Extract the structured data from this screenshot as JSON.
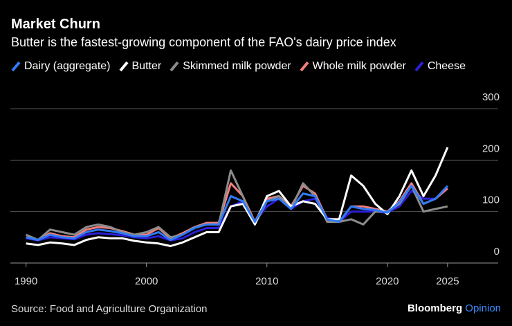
{
  "chart_data": {
    "type": "line",
    "title": "Market Churn",
    "subtitle": "Butter is the fastest-growing component of the FAO's dairy price index",
    "source": "Source: Food and Agriculture Organization",
    "logo": {
      "name": "Bloomberg",
      "tag": "Opinion"
    },
    "x": [
      1990,
      1991,
      1992,
      1993,
      1994,
      1995,
      1996,
      1997,
      1998,
      1999,
      2000,
      2001,
      2002,
      2003,
      2004,
      2005,
      2006,
      2007,
      2008,
      2009,
      2010,
      2011,
      2012,
      2013,
      2014,
      2015,
      2016,
      2017,
      2018,
      2019,
      2020,
      2021,
      2022,
      2023,
      2024,
      2025
    ],
    "xlim": [
      1988.7,
      2029.2
    ],
    "xticks": [
      1990,
      2000,
      2010,
      2020,
      2025
    ],
    "ylim": [
      0,
      300
    ],
    "yticks": [
      0,
      100,
      200,
      300
    ],
    "grid": true,
    "series": [
      {
        "name": "Dairy (aggregate)",
        "color": "#2f7bf5",
        "values": [
          50,
          45,
          55,
          50,
          48,
          60,
          65,
          62,
          58,
          52,
          52,
          60,
          45,
          55,
          68,
          75,
          75,
          130,
          120,
          80,
          120,
          125,
          105,
          135,
          130,
          85,
          80,
          110,
          105,
          103,
          98,
          118,
          150,
          115,
          125,
          150
        ]
      },
      {
        "name": "Butter",
        "color": "#ffffff",
        "values": [
          38,
          35,
          40,
          38,
          35,
          45,
          50,
          48,
          48,
          43,
          40,
          38,
          33,
          40,
          50,
          60,
          60,
          110,
          115,
          75,
          130,
          140,
          110,
          120,
          115,
          85,
          85,
          170,
          150,
          115,
          95,
          130,
          180,
          130,
          170,
          225
        ]
      },
      {
        "name": "Skimmed milk powder",
        "color": "#8c8c8c",
        "values": [
          55,
          45,
          65,
          60,
          55,
          70,
          75,
          70,
          60,
          55,
          60,
          70,
          50,
          55,
          70,
          75,
          75,
          180,
          130,
          75,
          120,
          130,
          105,
          155,
          130,
          80,
          80,
          85,
          75,
          100,
          100,
          115,
          150,
          100,
          105,
          110
        ]
      },
      {
        "name": "Whole milk powder",
        "color": "#f47e7e",
        "values": [
          50,
          45,
          58,
          52,
          50,
          65,
          70,
          68,
          62,
          55,
          55,
          68,
          48,
          58,
          70,
          78,
          78,
          155,
          130,
          80,
          125,
          130,
          110,
          150,
          135,
          85,
          80,
          110,
          110,
          105,
          100,
          120,
          155,
          115,
          125,
          145
        ]
      },
      {
        "name": "Cheese",
        "color": "#2c1fd6",
        "values": [
          48,
          44,
          50,
          48,
          46,
          55,
          58,
          56,
          54,
          50,
          48,
          52,
          44,
          48,
          60,
          68,
          68,
          110,
          120,
          80,
          110,
          125,
          105,
          120,
          125,
          88,
          80,
          100,
          100,
          100,
          98,
          110,
          140,
          125,
          125,
          145
        ]
      }
    ]
  }
}
